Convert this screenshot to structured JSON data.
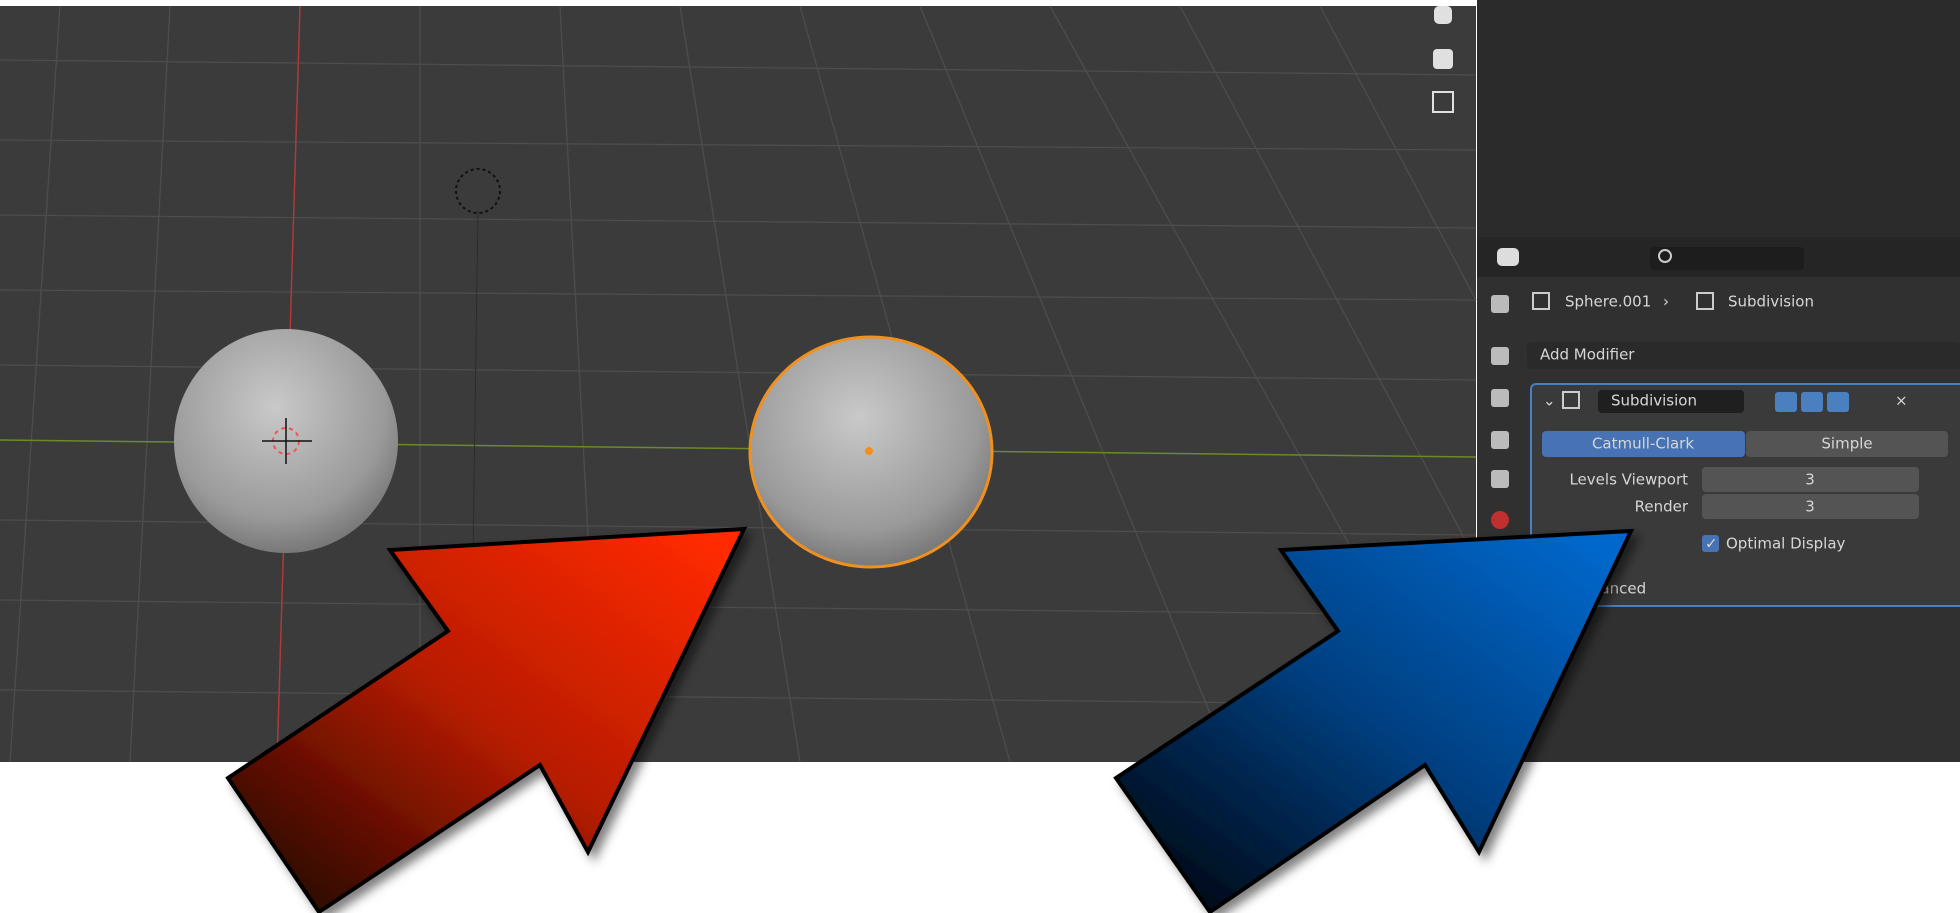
{
  "breadcrumb": {
    "object": "Sphere.001",
    "modifier": "Subdivision"
  },
  "add_modifier": "Add Modifier",
  "modifier": {
    "name": "Subdivision",
    "tabs": [
      "Catmull-Clark",
      "Simple"
    ],
    "fields": [
      {
        "label": "Levels Viewport",
        "value": "3"
      },
      {
        "label": "Render",
        "value": "3"
      }
    ],
    "checkbox": "Optimal Display",
    "section": "Advanced"
  }
}
